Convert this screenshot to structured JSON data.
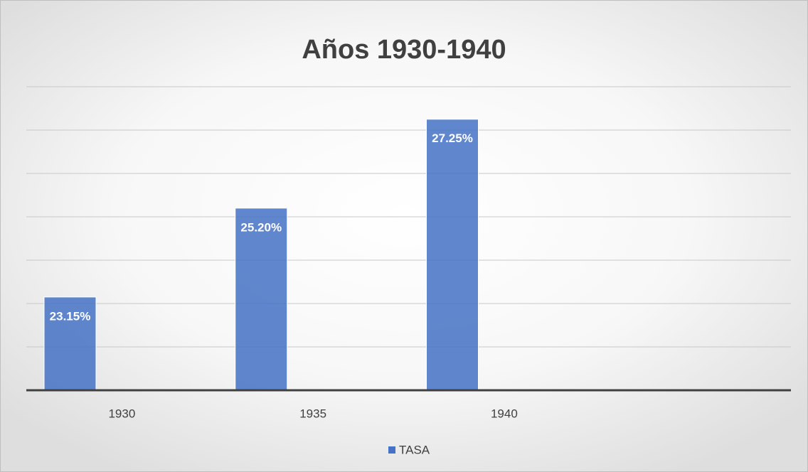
{
  "chart_data": {
    "type": "bar",
    "title": "Años 1930-1940",
    "categories": [
      "1930",
      "1935",
      "1940",
      null
    ],
    "series": [
      {
        "name": "TASA",
        "color": "#4472c4",
        "values": [
          23.15,
          25.2,
          27.25,
          null
        ],
        "value_labels": [
          "23.15%",
          "25.20%",
          "27.25%",
          null
        ]
      }
    ],
    "ylim": [
      21,
      28
    ],
    "yticks": [
      21,
      22,
      23,
      24,
      25,
      26,
      27,
      28
    ],
    "grid": true,
    "legend": "bottom"
  }
}
